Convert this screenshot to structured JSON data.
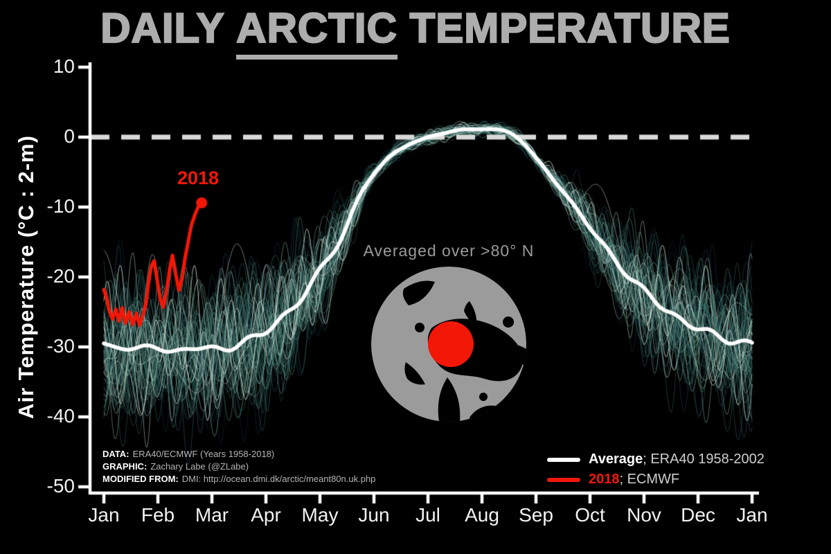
{
  "title": {
    "pre": "DAILY ",
    "highlight": "ARCTIC",
    "post": " TEMPERATURE"
  },
  "y_axis_label": "Air Temperature (°C : 2-m)",
  "map_caption": "Averaged over >80° N",
  "label_2018": "2018",
  "credits": [
    {
      "label": "DATA:",
      "text": "ERA40/ECMWF (Years 1958-2018)"
    },
    {
      "label": "GRAPHIC:",
      "text": "Zachary Labe (@ZLabe)"
    },
    {
      "label": "MODIFIED FROM:",
      "text": "DMI: http://ocean.dmi.dk/arctic/meant80n.uk.php"
    }
  ],
  "legend": {
    "average": {
      "label": "Average",
      "rest": "; ERA40 1958-2002",
      "color": "#ffffff"
    },
    "y2018": {
      "label": "2018",
      "rest": "; ECMWF",
      "color": "#f31708"
    }
  },
  "colors": {
    "background": "#000000",
    "axis": "#ffffff",
    "title": "#adadad",
    "zero_line": "#d9d9d9",
    "red": "#f31708",
    "average": "#ffffff",
    "map_land": "#9b9b9b",
    "caption": "#9b9b9b"
  },
  "chart_data": {
    "type": "line",
    "title": "DAILY ARCTIC TEMPERATURE",
    "ylabel": "Air Temperature (°C : 2-m)",
    "ylim": [
      -50,
      10
    ],
    "xlim_months": [
      0,
      12
    ],
    "x_tick_labels": [
      "Jan",
      "Feb",
      "Mar",
      "Apr",
      "May",
      "Jun",
      "Jul",
      "Aug",
      "Sep",
      "Oct",
      "Nov",
      "Dec",
      "Jan"
    ],
    "y_ticks": [
      10,
      0,
      -10,
      -20,
      -30,
      -40,
      -50
    ],
    "zero_reference": 0,
    "series": [
      {
        "name": "Average; ERA40 1958-2002",
        "color": "#ffffff",
        "points_monthly": [
          [
            0.0,
            -29.5
          ],
          [
            0.4,
            -30.2
          ],
          [
            0.8,
            -30.0
          ],
          [
            1.2,
            -30.6
          ],
          [
            1.6,
            -30.1
          ],
          [
            2.0,
            -30.4
          ],
          [
            2.4,
            -29.8
          ],
          [
            2.8,
            -28.6
          ],
          [
            3.2,
            -26.6
          ],
          [
            3.6,
            -23.4
          ],
          [
            4.0,
            -19.2
          ],
          [
            4.4,
            -14.2
          ],
          [
            4.8,
            -7.5
          ],
          [
            5.2,
            -3.5
          ],
          [
            5.6,
            -1.2
          ],
          [
            6.0,
            -0.1
          ],
          [
            6.4,
            0.8
          ],
          [
            6.8,
            1.1
          ],
          [
            7.2,
            1.1
          ],
          [
            7.6,
            0.3
          ],
          [
            8.0,
            -3.0
          ],
          [
            8.4,
            -6.8
          ],
          [
            8.8,
            -10.8
          ],
          [
            9.2,
            -15.0
          ],
          [
            9.6,
            -18.8
          ],
          [
            10.0,
            -22.0
          ],
          [
            10.4,
            -24.6
          ],
          [
            10.8,
            -26.6
          ],
          [
            11.2,
            -28.0
          ],
          [
            11.6,
            -29.0
          ],
          [
            12.0,
            -29.6
          ]
        ]
      },
      {
        "name": "2018; ECMWF",
        "color": "#f31708",
        "end_marker": true,
        "points": [
          [
            0.0,
            -21.8
          ],
          [
            0.05,
            -23.0
          ],
          [
            0.1,
            -24.8
          ],
          [
            0.16,
            -26.0
          ],
          [
            0.22,
            -24.6
          ],
          [
            0.28,
            -26.3
          ],
          [
            0.34,
            -24.4
          ],
          [
            0.4,
            -26.6
          ],
          [
            0.47,
            -25.0
          ],
          [
            0.53,
            -26.8
          ],
          [
            0.6,
            -25.2
          ],
          [
            0.66,
            -26.9
          ],
          [
            0.72,
            -25.6
          ],
          [
            0.78,
            -23.8
          ],
          [
            0.83,
            -20.6
          ],
          [
            0.88,
            -18.4
          ],
          [
            0.93,
            -17.7
          ],
          [
            0.99,
            -20.6
          ],
          [
            1.04,
            -23.0
          ],
          [
            1.1,
            -24.3
          ],
          [
            1.16,
            -22.0
          ],
          [
            1.22,
            -18.8
          ],
          [
            1.27,
            -16.9
          ],
          [
            1.33,
            -19.6
          ],
          [
            1.39,
            -21.9
          ],
          [
            1.45,
            -20.2
          ],
          [
            1.5,
            -17.4
          ],
          [
            1.56,
            -15.0
          ],
          [
            1.62,
            -12.6
          ],
          [
            1.69,
            -11.0
          ],
          [
            1.75,
            -9.9
          ],
          [
            1.81,
            -9.4
          ]
        ]
      }
    ],
    "ensemble": {
      "description": "Individual years ERA40/ECMWF 1958-2018",
      "year_start": 1958,
      "year_end": 2018,
      "count": 61,
      "palette": [
        "#0e2733",
        "#1e4b53",
        "#35706b",
        "#5d9e8b",
        "#9ccdb4",
        "#e2f3e8"
      ],
      "opacity": 0.5
    }
  }
}
